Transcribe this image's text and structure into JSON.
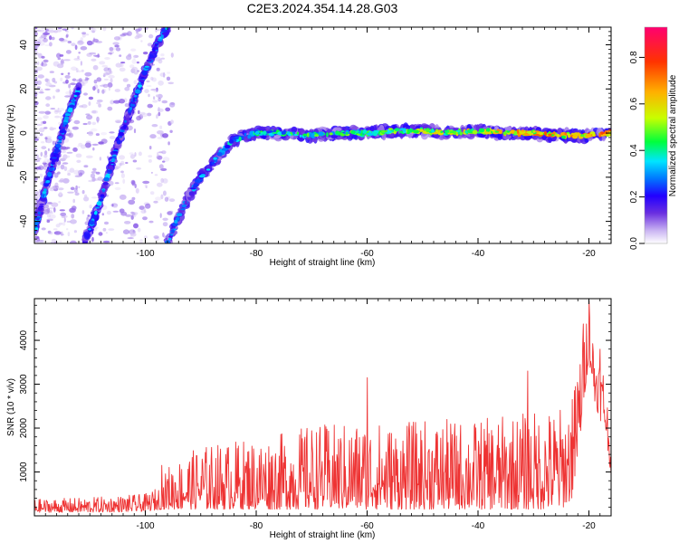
{
  "title": "C2E3.2024.354.14.28.G03",
  "chart_data": [
    {
      "type": "heatmap",
      "xlabel": "Height of straight line (km)",
      "ylabel": "Frequency (Hz)",
      "xlim": [
        -120,
        -16
      ],
      "ylim": [
        -50,
        48
      ],
      "xticks": [
        -100,
        -80,
        -60,
        -40,
        -20
      ],
      "yticks": [
        -40,
        -20,
        0,
        20,
        40
      ],
      "xtick_labels": [
        "-100",
        "-80",
        "-60",
        "-40",
        "-20"
      ],
      "ytick_labels": [
        "-40",
        "-20",
        "0",
        "20",
        "40"
      ],
      "colorbar": {
        "label": "Normalized spectral amplitude",
        "range": [
          0.0,
          0.93
        ],
        "ticks": [
          0.0,
          0.2,
          0.4,
          0.6,
          0.8
        ],
        "tick_labels": [
          "0.0",
          "0.2",
          "0.4",
          "0.6",
          "0.8"
        ],
        "colormap": [
          "#ffffff",
          "#c9b3f2",
          "#6a2fe0",
          "#2200ff",
          "#0077ff",
          "#00e5ff",
          "#00ff3c",
          "#c8ff00",
          "#ffb000",
          "#ff3300",
          "#ff0070"
        ]
      },
      "traces": [
        {
          "name_hint": "main-track",
          "x": [
            -96,
            -94,
            -92,
            -90,
            -88,
            -86,
            -84,
            -80,
            -75,
            -70,
            -65,
            -60,
            -55,
            -50,
            -45,
            -40,
            -35,
            -30,
            -25,
            -20,
            -16
          ],
          "y": [
            -50,
            -38,
            -28,
            -20,
            -14,
            -8,
            -3,
            0,
            0,
            -1,
            0,
            0,
            1,
            1,
            0,
            1,
            0,
            0,
            -1,
            -1,
            0
          ]
        },
        {
          "name_hint": "diagonal-track",
          "x": [
            -111,
            -108,
            -105,
            -102,
            -100,
            -98,
            -96
          ],
          "y": [
            -50,
            -30,
            -5,
            15,
            28,
            40,
            48
          ]
        },
        {
          "name_hint": "left-track",
          "x": [
            -120,
            -118,
            -116,
            -114,
            -112
          ],
          "y": [
            -45,
            -25,
            -8,
            8,
            20
          ]
        }
      ],
      "noise_region_x": [
        -120,
        -95
      ]
    },
    {
      "type": "line",
      "xlabel": "Height of straight line (km)",
      "ylabel": "SNR (10 * v/v)",
      "xlim": [
        -120,
        -16
      ],
      "ylim": [
        0,
        4950
      ],
      "xticks": [
        -100,
        -80,
        -60,
        -40,
        -20
      ],
      "yticks": [
        1000,
        2000,
        3000,
        4000
      ],
      "xtick_labels": [
        "-100",
        "-80",
        "-60",
        "-40",
        "-20"
      ],
      "ytick_labels": [
        "1000",
        "2000",
        "3000",
        "4000"
      ],
      "color": "#ee3333",
      "envelope": {
        "x": [
          -120,
          -110,
          -100,
          -97,
          -96,
          -90,
          -85,
          -80,
          -75,
          -70,
          -65,
          -60,
          -55,
          -50,
          -45,
          -40,
          -35,
          -30,
          -25,
          -23,
          -22,
          -21,
          -20,
          -19,
          -18,
          -17,
          -16
        ],
        "lo": [
          80,
          80,
          100,
          150,
          150,
          150,
          150,
          150,
          150,
          150,
          150,
          150,
          150,
          150,
          150,
          150,
          150,
          150,
          150,
          400,
          1200,
          2500,
          3600,
          2600,
          2200,
          1900,
          900
        ],
        "hi": [
          380,
          420,
          500,
          700,
          1150,
          1600,
          1700,
          1800,
          1900,
          2100,
          2100,
          2200,
          2100,
          2200,
          2200,
          2200,
          2300,
          2400,
          2500,
          2600,
          3600,
          4500,
          4900,
          4000,
          3800,
          3300,
          1500
        ]
      },
      "spikes": [
        [
          -97,
          1150
        ],
        [
          -60,
          3150
        ],
        [
          -31,
          3300
        ],
        [
          -23,
          2650
        ],
        [
          -20,
          4900
        ],
        [
          -18,
          3800
        ]
      ]
    }
  ]
}
